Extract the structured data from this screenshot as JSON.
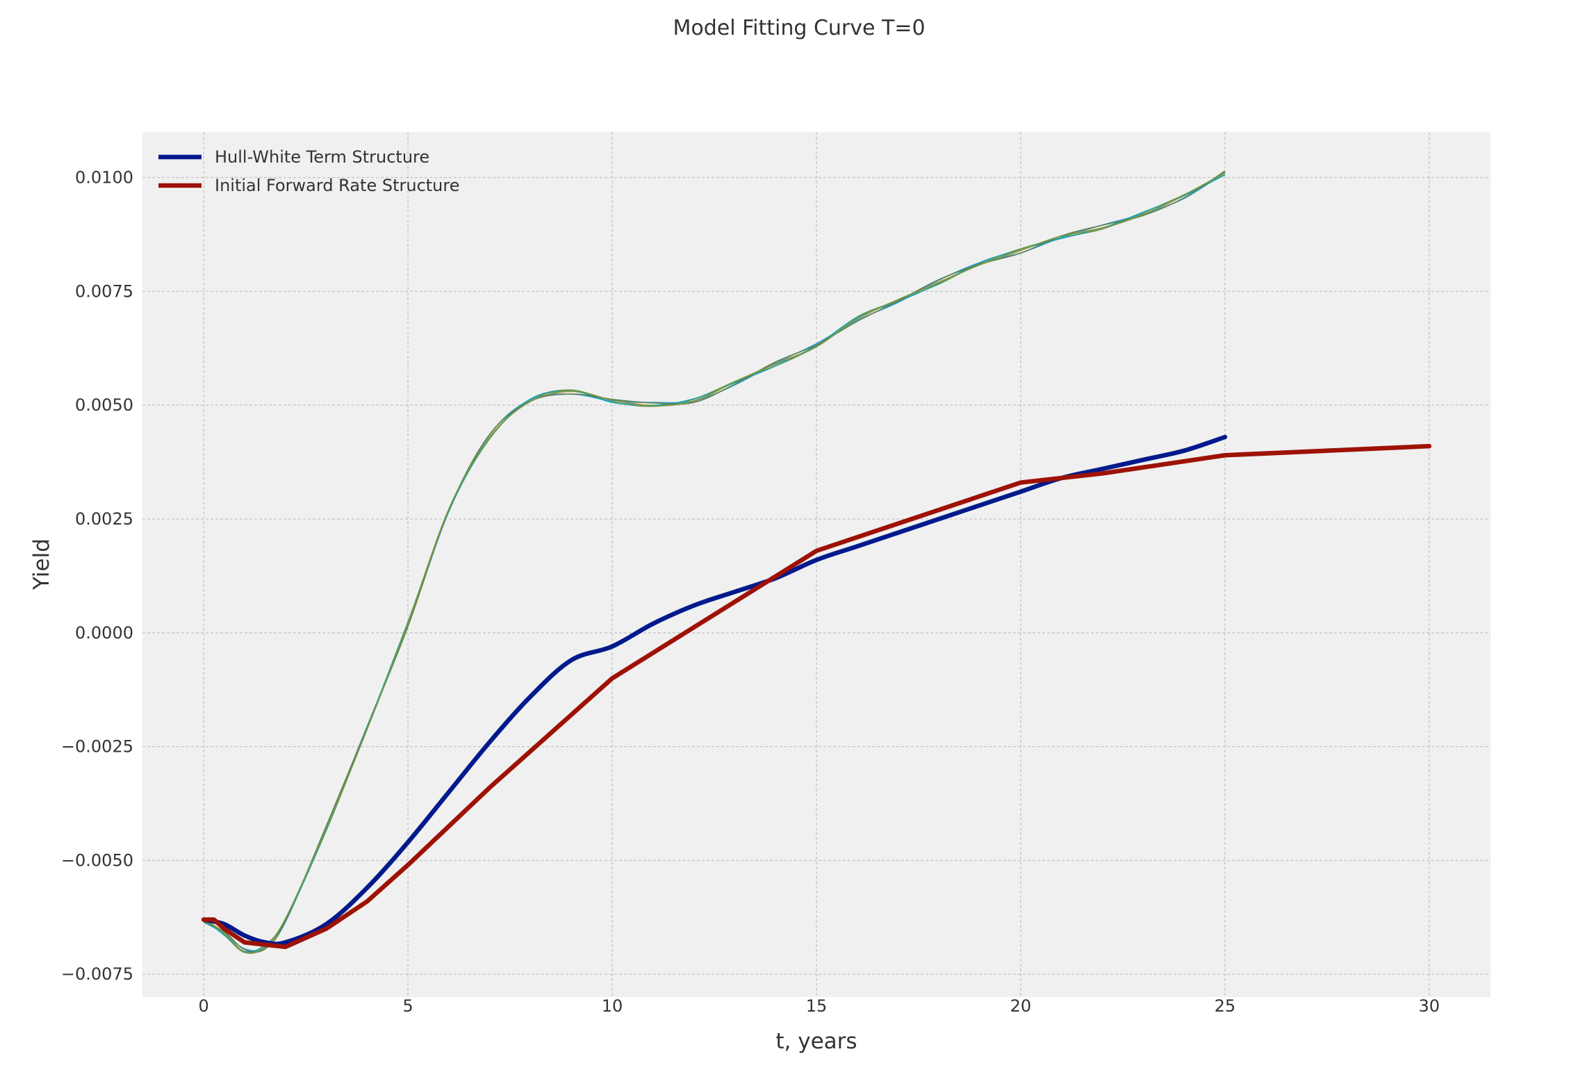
{
  "chart_data": {
    "type": "line",
    "title": "Model Fitting Curve T=0",
    "xlabel": "t, years",
    "ylabel": "Yield",
    "xlim": [
      -1.5,
      31.5
    ],
    "ylim": [
      -0.008,
      0.011
    ],
    "grid": true,
    "legend_position": "top-left",
    "x_ticks": [
      0,
      5,
      10,
      15,
      20,
      25,
      30
    ],
    "x_tick_labels": [
      "0",
      "5",
      "10",
      "15",
      "20",
      "25",
      "30"
    ],
    "y_ticks": [
      -0.0075,
      -0.005,
      -0.0025,
      0.0,
      0.0025,
      0.005,
      0.0075,
      0.01
    ],
    "y_tick_labels": [
      "−0.0075",
      "−0.0050",
      "−0.0025",
      "0.0000",
      "0.0025",
      "0.0050",
      "0.0075",
      "0.0100"
    ],
    "series": [
      {
        "name": "Hull-White Term Structure",
        "color": "#001a8c",
        "x": [
          0,
          0.5,
          1,
          1.5,
          2,
          3,
          4,
          5,
          6,
          7,
          8,
          9,
          10,
          11,
          12,
          13,
          14,
          15,
          16,
          17,
          18,
          19,
          20,
          21,
          22,
          23,
          24,
          25
        ],
        "y": [
          -0.0063,
          -0.0064,
          -0.00665,
          -0.0068,
          -0.0068,
          -0.0064,
          -0.0056,
          -0.0046,
          -0.0035,
          -0.0024,
          -0.0014,
          -0.0006,
          -0.0003,
          0.0002,
          0.0006,
          0.0009,
          0.0012,
          0.0016,
          0.0019,
          0.0022,
          0.0025,
          0.0028,
          0.0031,
          0.0034,
          0.0036,
          0.0038,
          0.004,
          0.0043
        ]
      },
      {
        "name": "Initial Forward Rate Structure",
        "color": "#9e1206",
        "x": [
          0,
          0.25,
          0.5,
          1,
          2,
          3,
          4,
          5,
          7,
          10,
          15,
          20,
          22,
          25,
          30
        ],
        "y": [
          -0.0063,
          -0.0063,
          -0.0065,
          -0.0068,
          -0.0069,
          -0.0065,
          -0.0059,
          -0.0051,
          -0.0034,
          -0.001,
          0.0018,
          0.0033,
          0.0035,
          0.0039,
          0.0041
        ]
      }
    ],
    "simulated_paths": {
      "colors": [
        "#e5ae38",
        "#6d904f",
        "#30a2da",
        "#8b8b8b",
        "#17a0a8",
        "#5b7f4e",
        "#7a9b3f"
      ],
      "x": [
        0,
        0.5,
        1,
        1.5,
        2,
        3,
        4,
        5,
        6,
        7,
        8,
        9,
        10,
        11,
        12,
        13,
        14,
        15,
        16,
        17,
        18,
        19,
        20,
        21,
        22,
        23,
        24,
        25
      ],
      "y": [
        -0.0063,
        -0.0066,
        -0.007,
        -0.0069,
        -0.0063,
        -0.0043,
        -0.0021,
        0.0002,
        0.0027,
        0.0043,
        0.0051,
        0.0053,
        0.0051,
        0.005,
        0.0051,
        0.0055,
        0.0059,
        0.0063,
        0.0069,
        0.0073,
        0.0077,
        0.0081,
        0.0084,
        0.0087,
        0.0089,
        0.0092,
        0.0096,
        0.0101
      ]
    }
  }
}
